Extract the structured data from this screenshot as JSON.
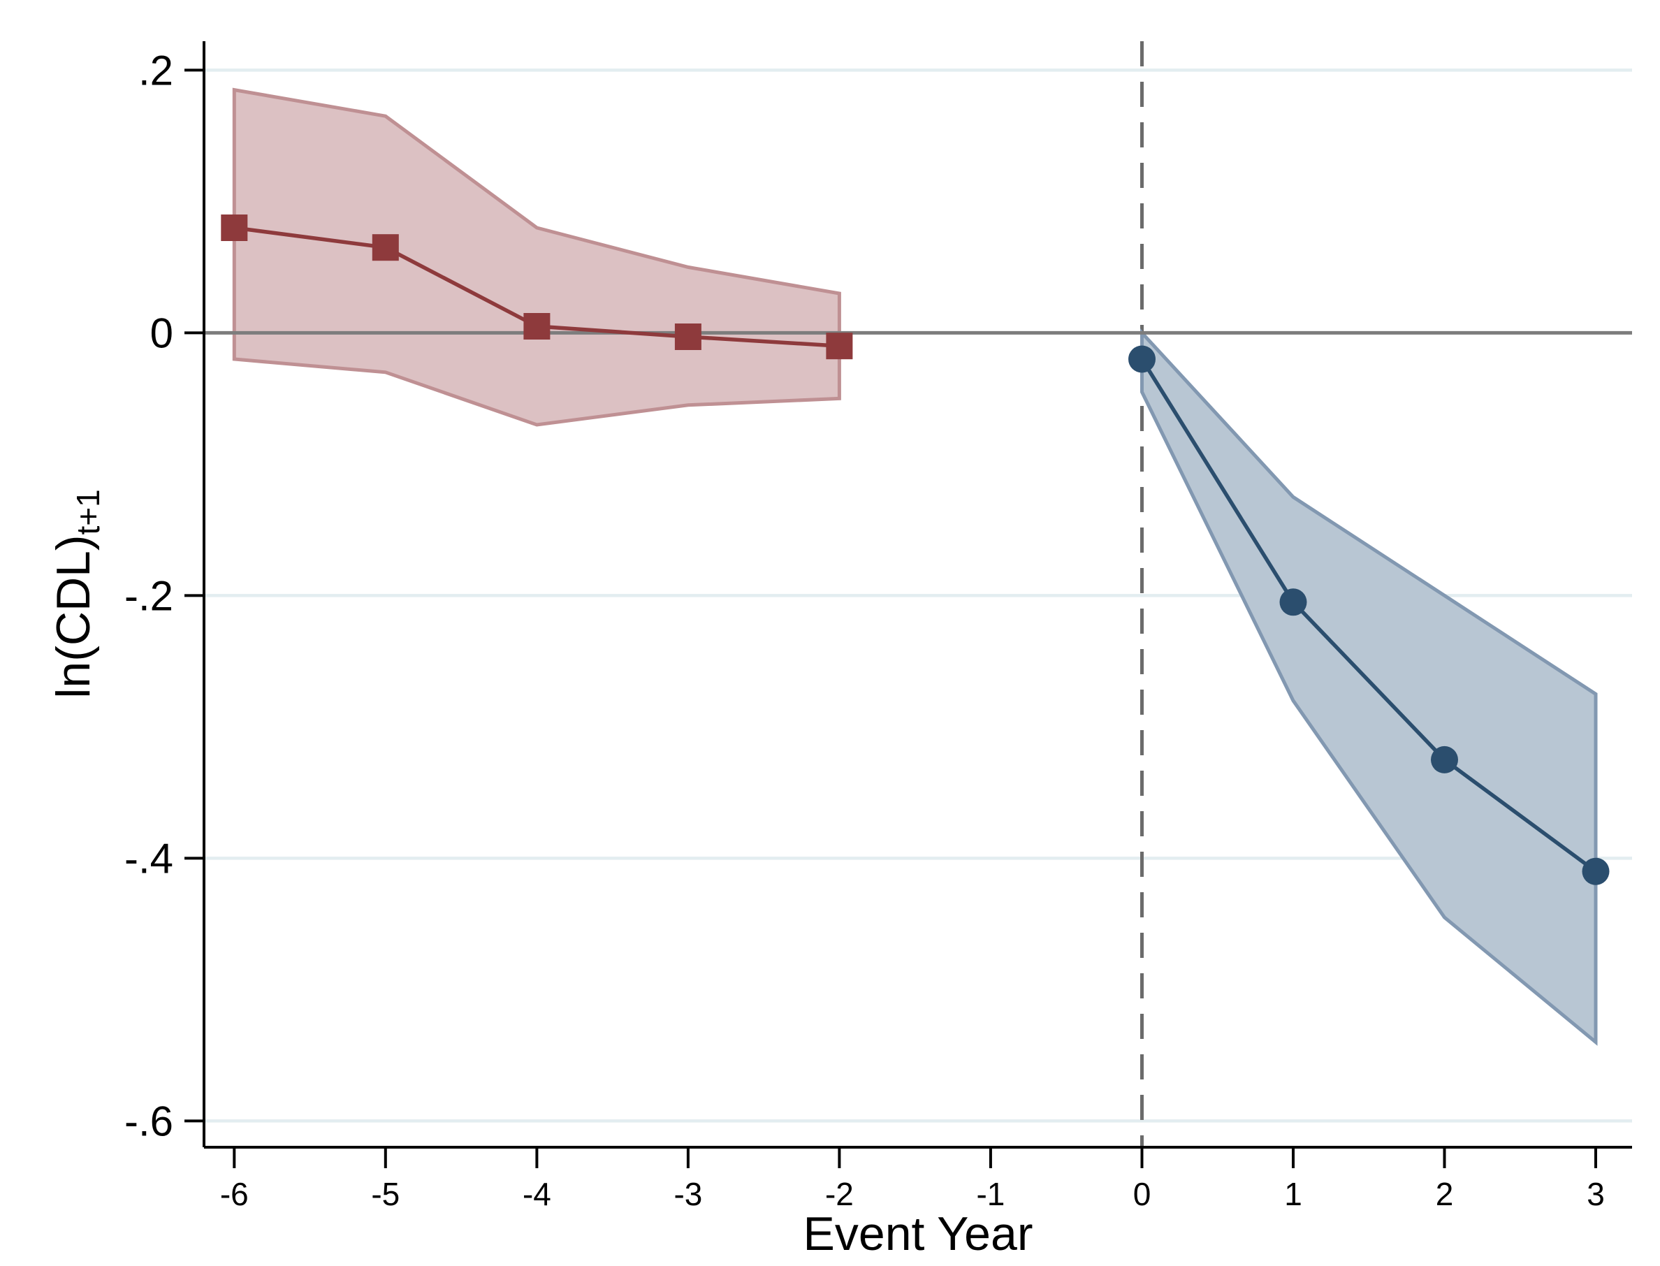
{
  "chart_data": {
    "type": "line",
    "title": "",
    "xlabel": "Event Year",
    "ylabel": {
      "main": "ln(CDL)",
      "sub": "t+1"
    },
    "xlim": [
      -6.2,
      3.24
    ],
    "ylim": [
      -0.62,
      0.222
    ],
    "grid": true,
    "legend": "none",
    "x_ticks": {
      "values": [
        -6,
        -5,
        -4,
        -3,
        -2,
        -1,
        0,
        1,
        2,
        3
      ],
      "labels": [
        "-6",
        "-5",
        "-4",
        "-3",
        "-2",
        "-1",
        "0",
        "1",
        "2",
        "3"
      ]
    },
    "y_ticks": {
      "values": [
        0.2,
        0,
        -0.2,
        -0.4,
        -0.6
      ],
      "labels": [
        ".2",
        "0",
        "-.2",
        "-.4",
        "-.6"
      ]
    },
    "gridline_values": [
      0.2,
      -0.2,
      -0.4,
      -0.6
    ],
    "reference_lines": {
      "hline_y": 0,
      "vline_x": 0,
      "vline_style": "dashed"
    },
    "series": [
      {
        "name": "red-squares-pre-period",
        "marker": "square",
        "x": [
          -6,
          -5,
          -4,
          -3,
          -2
        ],
        "y": [
          0.08,
          0.065,
          0.005,
          -0.003,
          -0.01
        ],
        "ci_upper": [
          0.185,
          0.165,
          0.08,
          0.05,
          0.03
        ],
        "ci_lower": [
          -0.02,
          -0.03,
          -0.07,
          -0.055,
          -0.05
        ],
        "color": "#8e3a3c",
        "band_fill": "#dcc1c3",
        "band_edge": "#bf9093"
      },
      {
        "name": "blue-circles-post-period",
        "marker": "circle",
        "x": [
          0,
          1,
          2,
          3
        ],
        "y": [
          -0.02,
          -0.205,
          -0.325,
          -0.41
        ],
        "ci_upper": [
          0.0,
          -0.125,
          -0.2,
          -0.275
        ],
        "ci_lower": [
          -0.045,
          -0.28,
          -0.445,
          -0.54
        ],
        "color": "#2b4e6e",
        "band_fill": "#b8c6d3",
        "band_edge": "#8298b1"
      }
    ],
    "colors": {
      "background": "#ffffff",
      "gridline": "#e3edf0",
      "zero_line": "#7d7d7d",
      "dashed_line": "#6b6b6b",
      "axis": "#000000"
    }
  }
}
